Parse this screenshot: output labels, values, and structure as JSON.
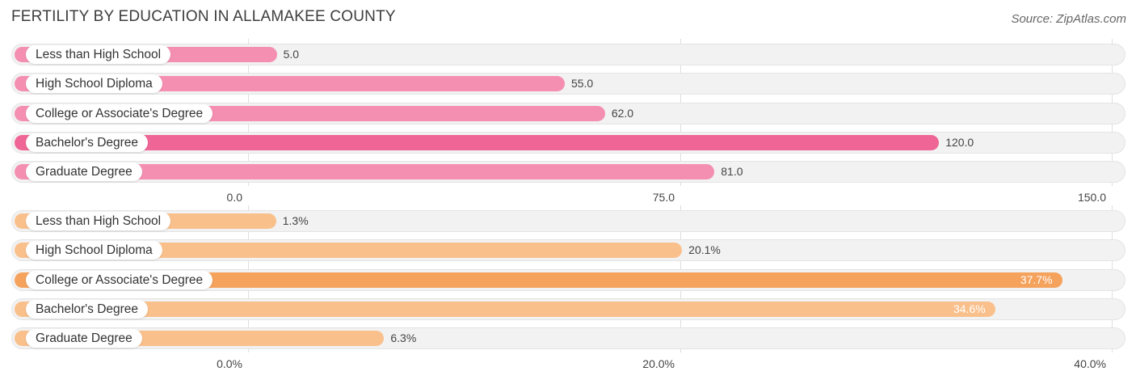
{
  "title": "FERTILITY BY EDUCATION IN ALLAMAKEE COUNTY",
  "source": "Source: ZipAtlas.com",
  "colors": {
    "top_bar": "#f48fb1",
    "top_bar_max": "#ef6595",
    "bottom_bar": "#f9c08c",
    "bottom_bar_max": "#f5a25d",
    "track": "#f2f2f2"
  },
  "chart_data": [
    {
      "type": "bar",
      "orientation": "horizontal",
      "categories": [
        "Less than High School",
        "High School Diploma",
        "College or Associate's Degree",
        "Bachelor's Degree",
        "Graduate Degree"
      ],
      "values": [
        5.0,
        55.0,
        62.0,
        120.0,
        81.0
      ],
      "value_labels": [
        "5.0",
        "55.0",
        "62.0",
        "120.0",
        "81.0"
      ],
      "xlim": [
        0,
        150
      ],
      "ticks": [
        "0.0",
        "75.0",
        "150.0"
      ],
      "tick_values": [
        0,
        75,
        150
      ],
      "grid": true
    },
    {
      "type": "bar",
      "orientation": "horizontal",
      "categories": [
        "Less than High School",
        "High School Diploma",
        "College or Associate's Degree",
        "Bachelor's Degree",
        "Graduate Degree"
      ],
      "values": [
        1.3,
        20.1,
        37.7,
        34.6,
        6.3
      ],
      "value_labels": [
        "1.3%",
        "20.1%",
        "37.7%",
        "34.6%",
        "6.3%"
      ],
      "xlim": [
        0,
        40
      ],
      "ticks": [
        "0.0%",
        "20.0%",
        "40.0%"
      ],
      "tick_values": [
        0,
        20,
        40
      ],
      "grid": true
    }
  ]
}
